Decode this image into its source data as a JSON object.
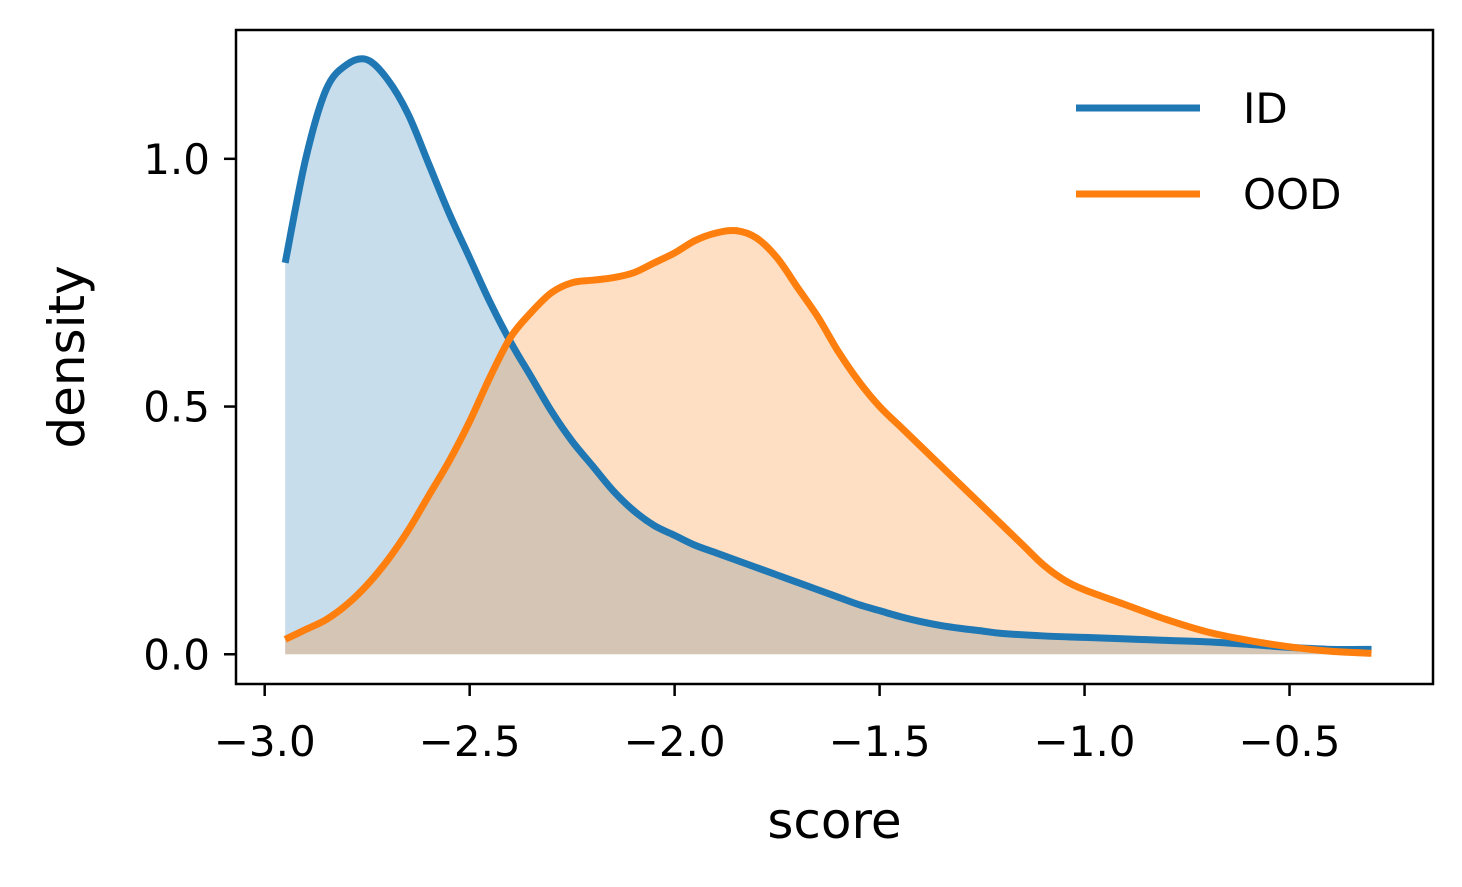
{
  "chart_data": {
    "type": "area",
    "xlabel": "score",
    "ylabel": "density",
    "xlim": [
      -3.07,
      -0.15
    ],
    "ylim": [
      -0.06,
      1.26
    ],
    "xticks": [
      -3.0,
      -2.5,
      -2.0,
      -1.5,
      -1.0,
      -0.5
    ],
    "xtick_labels": [
      "−3.0",
      "−2.5",
      "−2.0",
      "−1.5",
      "−1.0",
      "−0.5"
    ],
    "yticks": [
      0.0,
      0.5,
      1.0
    ],
    "ytick_labels": [
      "0.0",
      "0.5",
      "1.0"
    ],
    "grid": false,
    "legend_position": "top-right",
    "series": [
      {
        "name": "ID",
        "color": "#1f77b4",
        "fill_color": "#c6dbed",
        "x": [
          -2.95,
          -2.9,
          -2.85,
          -2.8,
          -2.75,
          -2.7,
          -2.65,
          -2.6,
          -2.55,
          -2.5,
          -2.45,
          -2.4,
          -2.35,
          -2.3,
          -2.25,
          -2.2,
          -2.15,
          -2.1,
          -2.05,
          -2.0,
          -1.95,
          -1.9,
          -1.85,
          -1.8,
          -1.75,
          -1.7,
          -1.65,
          -1.6,
          -1.55,
          -1.5,
          -1.45,
          -1.4,
          -1.35,
          -1.3,
          -1.25,
          -1.2,
          -1.1,
          -1.0,
          -0.9,
          -0.8,
          -0.7,
          -0.6,
          -0.5,
          -0.4,
          -0.3
        ],
        "y": [
          0.79,
          1.0,
          1.14,
          1.19,
          1.2,
          1.16,
          1.09,
          0.99,
          0.89,
          0.8,
          0.71,
          0.63,
          0.56,
          0.49,
          0.43,
          0.38,
          0.33,
          0.29,
          0.26,
          0.24,
          0.22,
          0.205,
          0.19,
          0.175,
          0.16,
          0.145,
          0.13,
          0.115,
          0.1,
          0.088,
          0.076,
          0.066,
          0.058,
          0.052,
          0.047,
          0.042,
          0.037,
          0.034,
          0.031,
          0.028,
          0.025,
          0.02,
          0.014,
          0.01,
          0.01
        ]
      },
      {
        "name": "OOD",
        "color": "#ff7f0e",
        "fill_color": "#ffdfc1",
        "x": [
          -2.95,
          -2.9,
          -2.85,
          -2.8,
          -2.75,
          -2.7,
          -2.65,
          -2.6,
          -2.55,
          -2.5,
          -2.45,
          -2.4,
          -2.35,
          -2.3,
          -2.25,
          -2.2,
          -2.15,
          -2.1,
          -2.05,
          -2.0,
          -1.95,
          -1.9,
          -1.85,
          -1.8,
          -1.75,
          -1.7,
          -1.65,
          -1.6,
          -1.55,
          -1.5,
          -1.45,
          -1.4,
          -1.35,
          -1.3,
          -1.25,
          -1.2,
          -1.15,
          -1.1,
          -1.05,
          -1.0,
          -0.9,
          -0.8,
          -0.7,
          -0.6,
          -0.5,
          -0.4,
          -0.3
        ],
        "y": [
          0.03,
          0.05,
          0.07,
          0.1,
          0.14,
          0.19,
          0.25,
          0.32,
          0.39,
          0.47,
          0.56,
          0.64,
          0.69,
          0.73,
          0.75,
          0.755,
          0.76,
          0.77,
          0.79,
          0.81,
          0.835,
          0.85,
          0.855,
          0.84,
          0.8,
          0.74,
          0.68,
          0.61,
          0.55,
          0.5,
          0.46,
          0.42,
          0.38,
          0.34,
          0.3,
          0.26,
          0.22,
          0.18,
          0.15,
          0.13,
          0.1,
          0.07,
          0.045,
          0.028,
          0.015,
          0.006,
          0.002
        ]
      }
    ]
  }
}
